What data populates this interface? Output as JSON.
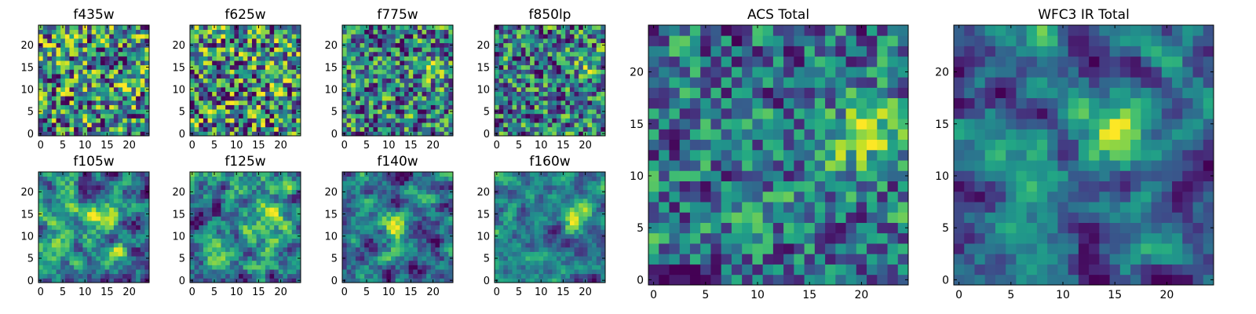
{
  "chart_data": [
    {
      "type": "heatmap",
      "title": "f435w",
      "grid_size": 25,
      "xticks": [
        "0",
        "5",
        "10",
        "15",
        "20"
      ],
      "yticks": [
        "0",
        "5",
        "10",
        "15",
        "20"
      ],
      "xlim": [
        0,
        24
      ],
      "ylim": [
        0,
        24
      ],
      "colormap": "viridis",
      "smoothness": 0.15,
      "seed": 11,
      "blob": {
        "cx": 17,
        "cy": 12,
        "strength": 0.05
      }
    },
    {
      "type": "heatmap",
      "title": "f625w",
      "grid_size": 25,
      "xticks": [
        "0",
        "5",
        "10",
        "15",
        "20"
      ],
      "yticks": [
        "0",
        "5",
        "10",
        "15",
        "20"
      ],
      "xlim": [
        0,
        24
      ],
      "ylim": [
        0,
        24
      ],
      "colormap": "viridis",
      "smoothness": 0.2,
      "seed": 23,
      "blob": {
        "cx": 20,
        "cy": 15,
        "strength": 0.18
      }
    },
    {
      "type": "heatmap",
      "title": "f775w",
      "grid_size": 25,
      "xticks": [
        "0",
        "5",
        "10",
        "15",
        "20"
      ],
      "yticks": [
        "0",
        "5",
        "10",
        "15",
        "20"
      ],
      "xlim": [
        0,
        24
      ],
      "ylim": [
        0,
        24
      ],
      "colormap": "viridis",
      "smoothness": 0.2,
      "seed": 37,
      "blob": {
        "cx": 21,
        "cy": 15,
        "strength": 0.25
      }
    },
    {
      "type": "heatmap",
      "title": "f850lp",
      "grid_size": 25,
      "xticks": [
        "0",
        "5",
        "10",
        "15",
        "20"
      ],
      "yticks": [
        "0",
        "5",
        "10",
        "15",
        "20"
      ],
      "xlim": [
        0,
        24
      ],
      "ylim": [
        0,
        24
      ],
      "colormap": "viridis",
      "smoothness": 0.2,
      "seed": 41,
      "blob": {
        "cx": 20,
        "cy": 15,
        "strength": 0.2
      }
    },
    {
      "type": "heatmap",
      "title": "f105w",
      "grid_size": 25,
      "xticks": [
        "0",
        "5",
        "10",
        "15",
        "20"
      ],
      "yticks": [
        "0",
        "5",
        "10",
        "15",
        "20"
      ],
      "xlim": [
        0,
        24
      ],
      "ylim": [
        0,
        24
      ],
      "colormap": "viridis",
      "smoothness": 0.55,
      "seed": 53,
      "blob": {
        "cx": 14,
        "cy": 14,
        "strength": 0.2
      }
    },
    {
      "type": "heatmap",
      "title": "f125w",
      "grid_size": 25,
      "xticks": [
        "0",
        "5",
        "10",
        "15",
        "20"
      ],
      "yticks": [
        "0",
        "5",
        "10",
        "15",
        "20"
      ],
      "xlim": [
        0,
        24
      ],
      "ylim": [
        0,
        24
      ],
      "colormap": "viridis",
      "smoothness": 0.55,
      "seed": 67,
      "blob": {
        "cx": 18,
        "cy": 14,
        "strength": 0.3
      }
    },
    {
      "type": "heatmap",
      "title": "f140w",
      "grid_size": 25,
      "xticks": [
        "0",
        "5",
        "10",
        "15",
        "20"
      ],
      "yticks": [
        "0",
        "5",
        "10",
        "15",
        "20"
      ],
      "xlim": [
        0,
        24
      ],
      "ylim": [
        0,
        24
      ],
      "colormap": "viridis",
      "smoothness": 0.55,
      "seed": 71,
      "blob": {
        "cx": 12,
        "cy": 12,
        "strength": 0.3
      }
    },
    {
      "type": "heatmap",
      "title": "f160w",
      "grid_size": 25,
      "xticks": [
        "0",
        "5",
        "10",
        "15",
        "20"
      ],
      "yticks": [
        "0",
        "5",
        "10",
        "15",
        "20"
      ],
      "xlim": [
        0,
        24
      ],
      "ylim": [
        0,
        24
      ],
      "colormap": "viridis",
      "smoothness": 0.55,
      "seed": 83,
      "blob": {
        "cx": 18,
        "cy": 14,
        "strength": 0.35
      }
    },
    {
      "type": "heatmap",
      "title": "ACS Total",
      "grid_size": 25,
      "xticks": [
        "0",
        "5",
        "10",
        "15",
        "20"
      ],
      "yticks": [
        "0",
        "5",
        "10",
        "15",
        "20"
      ],
      "xlim": [
        0,
        24
      ],
      "ylim": [
        0,
        24
      ],
      "colormap": "viridis",
      "smoothness": 0.35,
      "seed": 97,
      "blob": {
        "cx": 20,
        "cy": 14,
        "strength": 0.4
      }
    },
    {
      "type": "heatmap",
      "title": "WFC3 IR Total",
      "grid_size": 25,
      "xticks": [
        "0",
        "5",
        "10",
        "15",
        "20"
      ],
      "yticks": [
        "0",
        "5",
        "10",
        "15",
        "20"
      ],
      "xlim": [
        0,
        24
      ],
      "ylim": [
        0,
        24
      ],
      "colormap": "viridis",
      "smoothness": 0.6,
      "seed": 101,
      "blob": {
        "cx": 15,
        "cy": 14,
        "strength": 0.45
      }
    }
  ]
}
